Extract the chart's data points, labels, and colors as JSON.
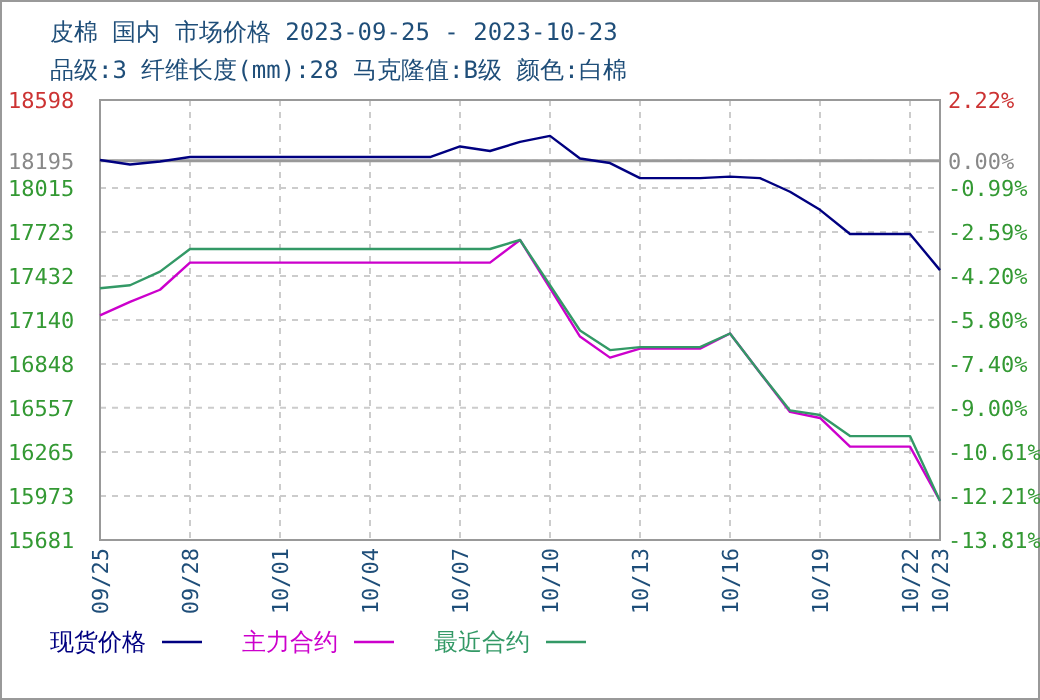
{
  "chart_data": {
    "type": "line",
    "title": "皮棉 国内 市场价格 2023-09-25 - 2023-10-23",
    "subtitle": "品级:3 纤维长度(mm):28 马克隆值:B级 颜色:白棉",
    "x": [
      "2023-09-25",
      "2023-09-26",
      "2023-09-27",
      "2023-09-28",
      "2023-09-29",
      "2023-09-30",
      "2023-10-01",
      "2023-10-02",
      "2023-10-03",
      "2023-10-04",
      "2023-10-05",
      "2023-10-06",
      "2023-10-07",
      "2023-10-08",
      "2023-10-09",
      "2023-10-10",
      "2023-10-11",
      "2023-10-12",
      "2023-10-13",
      "2023-10-14",
      "2023-10-15",
      "2023-10-16",
      "2023-10-17",
      "2023-10-18",
      "2023-10-19",
      "2023-10-20",
      "2023-10-21",
      "2023-10-22",
      "2023-10-23"
    ],
    "series": [
      {
        "name": "现货价格",
        "color": "#000080",
        "values": [
          18200,
          18170,
          18190,
          18220,
          18220,
          18220,
          18220,
          18220,
          18220,
          18220,
          18220,
          18220,
          18290,
          18260,
          18320,
          18360,
          18210,
          18180,
          18080,
          18080,
          18080,
          18090,
          18080,
          17990,
          17870,
          17710,
          17710,
          17710,
          17470
        ]
      },
      {
        "name": "主力合约",
        "color": "#cc00cc",
        "values": [
          17170,
          17260,
          17340,
          17520,
          17520,
          17520,
          17520,
          17520,
          17520,
          17520,
          17520,
          17520,
          17520,
          17520,
          17670,
          17350,
          17030,
          16890,
          16950,
          16950,
          16950,
          17050,
          16790,
          16530,
          16490,
          16300,
          16300,
          16300,
          15940
        ]
      },
      {
        "name": "最近合约",
        "color": "#339966",
        "values": [
          17350,
          17370,
          17460,
          17610,
          17610,
          17610,
          17610,
          17610,
          17610,
          17610,
          17610,
          17610,
          17610,
          17610,
          17670,
          17370,
          17070,
          16940,
          16960,
          16960,
          16960,
          17050,
          16790,
          16540,
          16510,
          16370,
          16370,
          16370,
          15940
        ]
      }
    ],
    "xlim": [
      "2023-09-25",
      "2023-10-23"
    ],
    "xticks": [
      {
        "value": "2023-09-25",
        "label": "09/25"
      },
      {
        "value": "2023-09-28",
        "label": "09/28"
      },
      {
        "value": "2023-10-01",
        "label": "10/01"
      },
      {
        "value": "2023-10-04",
        "label": "10/04"
      },
      {
        "value": "2023-10-07",
        "label": "10/07"
      },
      {
        "value": "2023-10-10",
        "label": "10/10"
      },
      {
        "value": "2023-10-13",
        "label": "10/13"
      },
      {
        "value": "2023-10-16",
        "label": "10/16"
      },
      {
        "value": "2023-10-19",
        "label": "10/19"
      },
      {
        "value": "2023-10-22",
        "label": "10/22"
      },
      {
        "value": "2023-10-23",
        "label": "10/23"
      }
    ],
    "ylim": [
      15681,
      18598
    ],
    "yticks": [
      15681,
      15973,
      16265,
      16557,
      16848,
      17140,
      17432,
      17723,
      18015,
      18195,
      18598
    ],
    "y2lim": [
      -13.81,
      2.22
    ],
    "y2ticks": [
      {
        "value": -13.81,
        "label": "-13.81%"
      },
      {
        "value": -12.21,
        "label": "-12.21%"
      },
      {
        "value": -10.61,
        "label": "-10.61%"
      },
      {
        "value": -9.0,
        "label": "-9.00%"
      },
      {
        "value": -7.4,
        "label": "-7.40%"
      },
      {
        "value": -5.8,
        "label": "-5.80%"
      },
      {
        "value": -4.2,
        "label": "-4.20%"
      },
      {
        "value": -2.59,
        "label": "-2.59%"
      },
      {
        "value": -0.99,
        "label": "-0.99%"
      },
      {
        "value": 0.0,
        "label": "0.00%"
      },
      {
        "value": 2.22,
        "label": "2.22%"
      }
    ],
    "ref_lines": [
      {
        "axis": "y",
        "value": 18195,
        "label": null,
        "color": "#999999"
      }
    ],
    "grid": true,
    "legend": "bottom",
    "marker": "none",
    "line_style": "solid"
  }
}
